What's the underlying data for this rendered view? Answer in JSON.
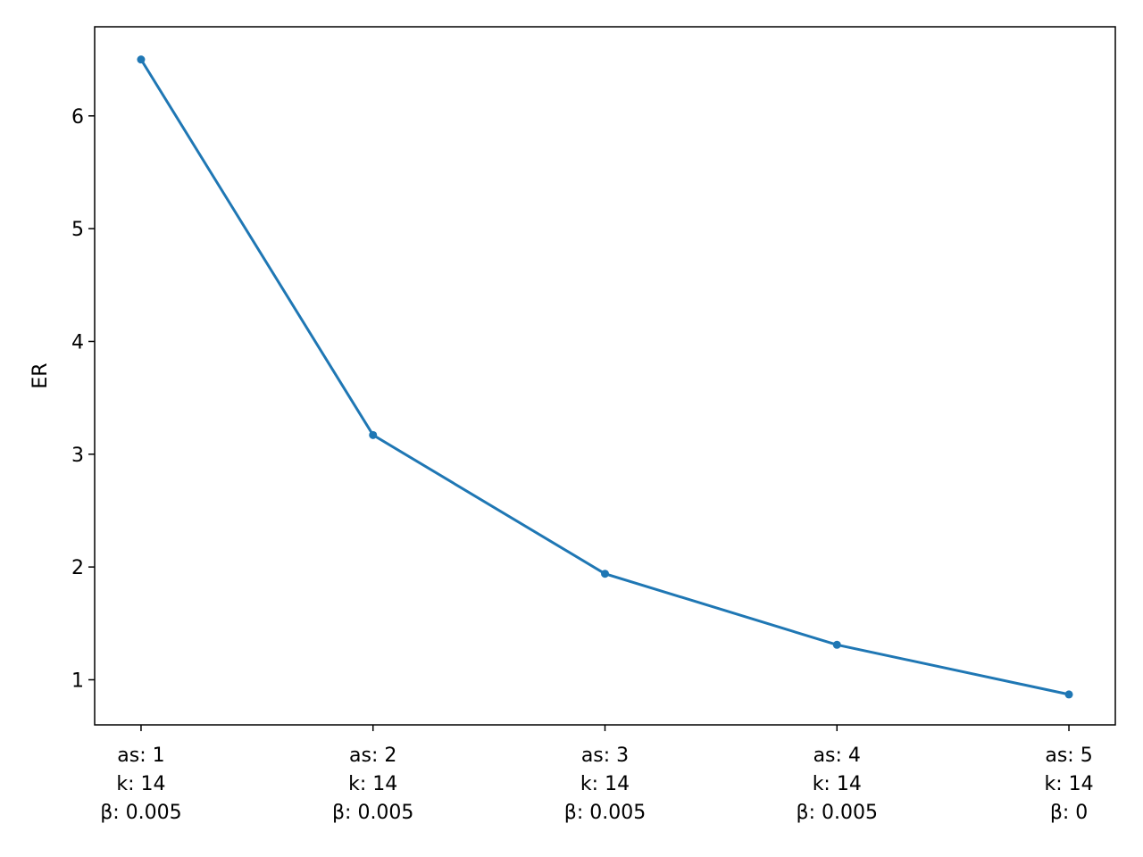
{
  "chart_data": {
    "type": "line",
    "ylabel": "ER",
    "categories": [
      [
        "as: 1",
        "k: 14",
        "β: 0.005"
      ],
      [
        "as: 2",
        "k: 14",
        "β: 0.005"
      ],
      [
        "as: 3",
        "k: 14",
        "β: 0.005"
      ],
      [
        "as: 4",
        "k: 14",
        "β: 0.005"
      ],
      [
        "as: 5",
        "k: 14",
        "β: 0"
      ]
    ],
    "values": [
      6.5,
      3.17,
      1.94,
      1.31,
      0.87
    ],
    "color": "#1f77b4",
    "ylim": [
      0.6,
      6.79
    ],
    "yticks": [
      1,
      2,
      3,
      4,
      5,
      6
    ],
    "grid": false
  }
}
